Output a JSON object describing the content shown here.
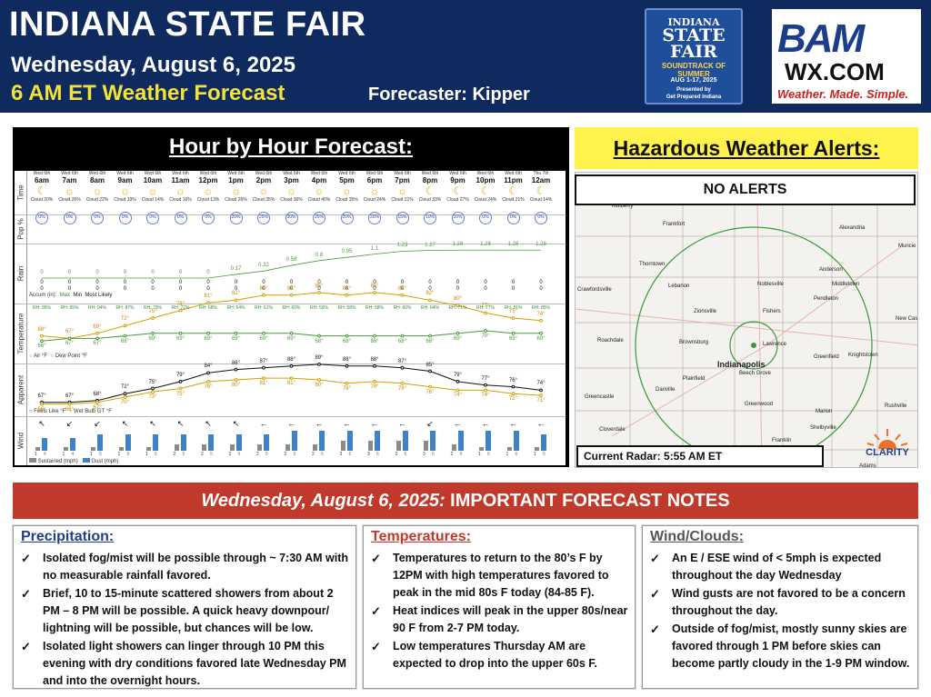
{
  "header": {
    "title": "INDIANA STATE FAIR",
    "date": "Wednesday, August 6, 2025",
    "forecast_label": "6 AM ET Weather Forecast",
    "forecaster": "Forecaster: Kipper",
    "fair_logo": {
      "line1": "INDIANA",
      "line2": "STATE FAIR",
      "line3": "SOUNDTRACK OF SUMMER",
      "line4": "AUG 1-17, 2025",
      "line5": "Presented by",
      "line6": "Get Prepared Indiana"
    },
    "bam_logo": {
      "bam": "BAM",
      "wx": "WX.COM",
      "tagline": "Weather. Made. Simple."
    }
  },
  "hour_by_hour": {
    "title": "Hour by Hour Forecast:",
    "row_labels": {
      "time": "Time",
      "pop": "Pop %",
      "rain": "Rain",
      "rain_sub": "Accumulation",
      "temperature": "Temperature",
      "apparent": "Apparent",
      "wind": "Wind"
    },
    "legends": {
      "accum": "Accum (in):",
      "accum_max": "Max",
      "accum_min": "Min",
      "accum_likely": "Most Likely",
      "air": "Air °F",
      "dew": "Dew Point °F",
      "feels": "Feels Like °F",
      "wetbulb": "Wet Bulb GT °F",
      "sustained": "Sustained (mph)",
      "gust": "Gust (mph)"
    },
    "hours": [
      {
        "day": "Wed 6th",
        "hour": "6am",
        "icon": "☾",
        "cloud": "Cloud 20%",
        "pop": "0%",
        "rain": "0",
        "rh": "RH: 95%",
        "temp": "68°",
        "dew": "66°",
        "feels": "67°",
        "wb": "66°",
        "dir": "↖",
        "sus": "1",
        "gust": "4"
      },
      {
        "day": "Wed 6th",
        "hour": "7am",
        "icon": "☼",
        "cloud": "Cloud 26%",
        "pop": "0%",
        "rain": "0",
        "rh": "RH: 95%",
        "temp": "67°",
        "dew": "67°",
        "feels": "67°",
        "wb": "66°",
        "dir": "↙",
        "sus": "1",
        "gust": "4"
      },
      {
        "day": "Wed 6th",
        "hour": "8am",
        "icon": "☼",
        "cloud": "Cloud 22%",
        "pop": "0%",
        "rain": "0",
        "rh": "RH: 94%",
        "temp": "69°",
        "dew": "67°",
        "feels": "68°",
        "wb": "67°",
        "dir": "↙",
        "sus": "1",
        "gust": "5"
      },
      {
        "day": "Wed 6th",
        "hour": "9am",
        "icon": "☼",
        "cloud": "Cloud 19%",
        "pop": "0%",
        "rain": "0",
        "rh": "RH: 87%",
        "temp": "72°",
        "dew": "68°",
        "feels": "72°",
        "wb": "70°",
        "dir": "↖",
        "sus": "1",
        "gust": "5"
      },
      {
        "day": "Wed 6th",
        "hour": "10am",
        "icon": "☼",
        "cloud": "Cloud 14%",
        "pop": "0%",
        "rain": "0",
        "rh": "RH: 79%",
        "temp": "75°",
        "dew": "69°",
        "feels": "75°",
        "wb": "73°",
        "dir": "↖",
        "sus": "1",
        "gust": "5"
      },
      {
        "day": "Wed 6th",
        "hour": "11am",
        "icon": "☼",
        "cloud": "Cloud 16%",
        "pop": "0%",
        "rain": "0",
        "rh": "RH: 72%",
        "temp": "78°",
        "dew": "69°",
        "feels": "79°",
        "wb": "75°",
        "dir": "↖",
        "sus": "2",
        "gust": "5"
      },
      {
        "day": "Wed 6th",
        "hour": "12pm",
        "icon": "☼",
        "cloud": "Cloud 13%",
        "pop": "0%",
        "rain": "0",
        "rh": "RH: 68%",
        "temp": "81°",
        "dew": "69°",
        "feels": "84°",
        "wb": "79°",
        "dir": "↖",
        "sus": "2",
        "gust": "5"
      },
      {
        "day": "Wed 6th",
        "hour": "1pm",
        "icon": "☼",
        "cloud": "Cloud 26%",
        "pop": "20%",
        "rain": "0",
        "rh": "RH: 64%",
        "temp": "82°",
        "dew": "69°",
        "feels": "86°",
        "wb": "80°",
        "dir": "↖",
        "sus": "2",
        "gust": "5"
      },
      {
        "day": "Wed 6th",
        "hour": "2pm",
        "icon": "☼",
        "cloud": "Cloud 35%",
        "pop": "25%",
        "rain": "0",
        "rh": "RH: 61%",
        "temp": "84°",
        "dew": "69°",
        "feels": "87°",
        "wb": "81°",
        "dir": "←",
        "sus": "2",
        "gust": "5"
      },
      {
        "day": "Wed 6th",
        "hour": "3pm",
        "icon": "☼",
        "cloud": "Cloud 36%",
        "pop": "30%",
        "rain": "0",
        "rh": "RH: 60%",
        "temp": "84°",
        "dew": "69°",
        "feels": "88°",
        "wb": "81°",
        "dir": "←",
        "sus": "2",
        "gust": "6"
      },
      {
        "day": "Wed 6th",
        "hour": "4pm",
        "icon": "☼",
        "cloud": "Cloud 40%",
        "pop": "25%",
        "rain": "0",
        "rh": "RH: 59%",
        "temp": "85°",
        "dew": "68°",
        "feels": "89°",
        "wb": "80°",
        "dir": "←",
        "sus": "2",
        "gust": "6"
      },
      {
        "day": "Wed 6th",
        "hour": "5pm",
        "icon": "☼",
        "cloud": "Cloud 35%",
        "pop": "20%",
        "rain": "0",
        "rh": "RH: 58%",
        "temp": "84°",
        "dew": "68°",
        "feels": "88°",
        "wb": "78°",
        "dir": "←",
        "sus": "3",
        "gust": "6"
      },
      {
        "day": "Wed 6th",
        "hour": "6pm",
        "icon": "☼",
        "cloud": "Cloud 24%",
        "pop": "20%",
        "rain": "0",
        "rh": "RH: 58%",
        "temp": "85°",
        "dew": "68°",
        "feels": "88°",
        "wb": "79°",
        "dir": "←",
        "sus": "3",
        "gust": "6"
      },
      {
        "day": "Wed 6th",
        "hour": "7pm",
        "icon": "☼",
        "cloud": "Cloud 21%",
        "pop": "15%",
        "rain": "0",
        "rh": "RH: 60%",
        "temp": "84°",
        "dew": "68°",
        "feels": "87°",
        "wb": "78°",
        "dir": "←",
        "sus": "3",
        "gust": "6"
      },
      {
        "day": "Wed 6th",
        "hour": "8pm",
        "icon": "☾",
        "cloud": "Cloud 33%",
        "pop": "10%",
        "rain": "0",
        "rh": "RH: 64%",
        "temp": "82°",
        "dew": "68°",
        "feels": "85°",
        "wb": "76°",
        "dir": "↙",
        "sus": "3",
        "gust": "6"
      },
      {
        "day": "Wed 6th",
        "hour": "9pm",
        "icon": "☾",
        "cloud": "Cloud 27%",
        "pop": "10%",
        "rain": "0",
        "rh": "RH: 71%",
        "temp": "80°",
        "dew": "69°",
        "feels": "79°",
        "wb": "74°",
        "dir": "←",
        "sus": "2",
        "gust": "6"
      },
      {
        "day": "Wed 6th",
        "hour": "10pm",
        "icon": "☾",
        "cloud": "Cloud 24%",
        "pop": "0%",
        "rain": "0",
        "rh": "RH: 77%",
        "temp": "77°",
        "dew": "70°",
        "feels": "77°",
        "wb": "74°",
        "dir": "←",
        "sus": "1",
        "gust": "6"
      },
      {
        "day": "Wed 6th",
        "hour": "11pm",
        "icon": "☾",
        "cloud": "Cloud 21%",
        "pop": "0%",
        "rain": "0",
        "rh": "RH: 81%",
        "temp": "75°",
        "dew": "69°",
        "feels": "76°",
        "wb": "72°",
        "dir": "←",
        "sus": "1",
        "gust": "6"
      },
      {
        "day": "Thu 7th",
        "hour": "12am",
        "icon": "☾",
        "cloud": "Cloud 14%",
        "pop": "0%",
        "rain": "0",
        "rh": "RH: 85%",
        "temp": "74°",
        "dew": "69°",
        "feels": "74°",
        "wb": "71°",
        "dir": "←",
        "sus": "1",
        "gust": "5"
      }
    ],
    "rain_accum_max": [
      "0",
      "0",
      "0",
      "0",
      "0",
      "0",
      "0",
      "0.17",
      "0.32",
      "0.58",
      "0.8",
      "0.95",
      "1.1",
      "1.23",
      "1.27",
      "1.28",
      "1.28",
      "1.28",
      "1.28"
    ]
  },
  "hazards": {
    "title": "Hazardous Weather Alerts:",
    "status": "NO ALERTS",
    "radar_label": "Current Radar: 5:55 AM ET",
    "towns": [
      "Mulberry",
      "Frankfort",
      "Alexandria",
      "Muncie",
      "Thorntown",
      "Anderson",
      "Crawfordsville",
      "Lebanon",
      "Noblesville",
      "Middletown",
      "Pendleton",
      "New Cas",
      "Zionsville",
      "Fishers",
      "Roachdale",
      "Brownsburg",
      "Lawrence",
      "Knightstown",
      "Indianapolis",
      "Danville",
      "Beech Grove",
      "Greenfield",
      "Plainfield",
      "Greencastle",
      "Greenwood",
      "Marion",
      "Rushville",
      "Shelbyville",
      "Cloverdale",
      "Franklin",
      "Adams"
    ],
    "clarity": "CLARITY"
  },
  "notes": {
    "banner_italic": "Wednesday, August 6, 2025:",
    "banner_rest": " IMPORTANT FORECAST NOTES",
    "precip": {
      "heading": "Precipitation:",
      "items": [
        "Isolated fog/mist will be possible through ~ 7:30 AM with no measurable rainfall favored.",
        "Brief, 10 to 15-minute scattered showers from about 2 PM – 8 PM will be possible. A quick heavy downpour/ lightning will be possible, but chances will be low.",
        "Isolated light showers can linger through 10 PM this evening with dry conditions favored late Wednesday PM and into the overnight hours."
      ]
    },
    "temps": {
      "heading": "Temperatures:",
      "items": [
        "Temperatures to return to the 80’s F by 12PM with high temperatures favored to peak in the mid 80s F today (84-85 F).",
        "Heat indices will peak in the upper 80s/near 90 F from 2-7 PM today.",
        "Low temperatures Thursday AM are expected to drop into the upper 60s F."
      ]
    },
    "wind": {
      "heading": "Wind/Clouds:",
      "items": [
        "An E / ESE wind of < 5mph is expected throughout the day Wednesday",
        "Wind gusts are not favored to be a concern throughout the day.",
        "Outside of fog/mist, mostly sunny skies are favored through 1 PM before skies can become partly cloudy in the 1-9 PM window."
      ]
    }
  },
  "colors": {
    "header_bg": "#0f2a5e",
    "accent_yellow": "#f2e23a",
    "alert_yellow": "#fff24d",
    "banner_red": "#c0392b",
    "precip_head": "#1f3f88",
    "temps_head": "#c0392b",
    "wind_head": "#555555"
  }
}
